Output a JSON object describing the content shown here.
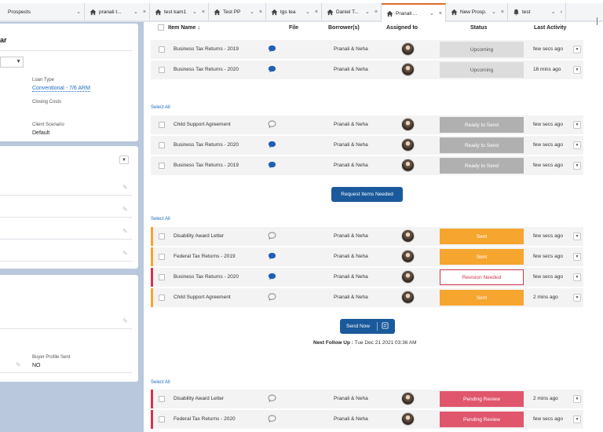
{
  "tabs": [
    {
      "label": "Prospects",
      "icon": "",
      "active": false,
      "closable": false
    },
    {
      "label": "pranali t...",
      "icon": "house-icon",
      "active": false,
      "closable": true
    },
    {
      "label": "test kam1",
      "icon": "house-icon",
      "active": false,
      "closable": true
    },
    {
      "label": "Test PP",
      "icon": "house-icon",
      "active": false,
      "closable": true
    },
    {
      "label": "tgs tea",
      "icon": "house-icon",
      "active": false,
      "closable": true
    },
    {
      "label": "Daniel T...",
      "icon": "house-icon",
      "active": false,
      "closable": true
    },
    {
      "label": "Pranali ...",
      "icon": "house-icon",
      "active": true,
      "closable": true
    },
    {
      "label": "New Prosp...",
      "icon": "house-icon",
      "active": false,
      "closable": true
    },
    {
      "label": "test",
      "icon": "bell-icon",
      "active": false,
      "closable": false
    }
  ],
  "left": {
    "title_fragment": "ar",
    "loan_type_label": "Loan Type",
    "loan_type_value": "Conventional - 7/6 ARM",
    "closing_costs_label": "Closing Costs",
    "client_scenario_label": "Client Scenario",
    "client_scenario_value": "Default",
    "buyer_profile_label": "Buyer Profile Sent",
    "buyer_profile_value": "NO"
  },
  "table": {
    "headers": {
      "item_name": "Item Name ↓",
      "file": "File",
      "borrowers": "Borrower(s)",
      "assigned_to": "Assigned to",
      "status": "Status",
      "last_activity": "Last Activity"
    }
  },
  "groups": [
    {
      "select_all": "",
      "rows": [
        {
          "name": "Business Tax Returns - 2019",
          "file": "filled",
          "borrower": "Pranali & Neha",
          "status": "Upcoming",
          "status_type": "upcoming",
          "activity": "few secs ago",
          "border": ""
        },
        {
          "name": "Business Tax Returns - 2020",
          "file": "filled",
          "borrower": "Pranali & Neha",
          "status": "Upcoming",
          "status_type": "upcoming",
          "activity": "16 mins ago",
          "border": ""
        }
      ]
    },
    {
      "select_all": "Select All",
      "rows": [
        {
          "name": "Child Support Agreement",
          "file": "outline",
          "borrower": "Pranali & Neha",
          "status": "Ready to Send",
          "status_type": "ready",
          "activity": "few secs ago",
          "border": ""
        },
        {
          "name": "Business Tax Returns - 2020",
          "file": "filled",
          "borrower": "Pranali & Neha",
          "status": "Ready to Send",
          "status_type": "ready",
          "activity": "few secs ago",
          "border": ""
        },
        {
          "name": "Business Tax Returns - 2019",
          "file": "filled",
          "borrower": "Pranali & Neha",
          "status": "Ready to Send",
          "status_type": "ready",
          "activity": "few secs ago",
          "border": ""
        }
      ],
      "button": "Request Items Needed"
    },
    {
      "select_all": "Select All",
      "rows": [
        {
          "name": "Disability Award Letter",
          "file": "outline",
          "borrower": "Pranali & Neha",
          "status": "Sent",
          "status_type": "sent",
          "activity": "few secs ago",
          "border": "orange"
        },
        {
          "name": "Federal Tax Returns - 2019",
          "file": "filled",
          "borrower": "Pranali & Neha",
          "status": "Sent",
          "status_type": "sent",
          "activity": "few secs ago",
          "border": "orange"
        },
        {
          "name": "Business Tax Returns - 2020",
          "file": "filled",
          "borrower": "Pranali & Neha",
          "status": "Revision Needed",
          "status_type": "revision",
          "activity": "few secs ago",
          "border": "red"
        },
        {
          "name": "Child Support Agreement",
          "file": "outline",
          "borrower": "Pranali & Neha",
          "status": "Sent",
          "status_type": "sent",
          "activity": "2 mins ago",
          "border": "orange"
        }
      ],
      "button": "Send Now",
      "followup_label": "Next Follow Up :",
      "followup_value": " Tue Dec 21 2021 03:36 AM"
    },
    {
      "select_all": "Select All",
      "rows": [
        {
          "name": "Disability Award Letter",
          "file": "outline",
          "borrower": "Pranali & Neha",
          "status": "Pending Review",
          "status_type": "pending",
          "activity": "2 mins ago",
          "border": "red"
        },
        {
          "name": "Federal Tax Returns - 2020",
          "file": "outline",
          "borrower": "Pranali & Neha",
          "status": "Pending Review",
          "status_type": "pending",
          "activity": "few secs ago",
          "border": "red"
        }
      ]
    }
  ],
  "colors": {
    "accent": "#1a5a9c",
    "sent": "#f6a52e",
    "pending": "#e0566d",
    "ready": "#b0b0b0",
    "upcoming": "#dcdcdc"
  }
}
